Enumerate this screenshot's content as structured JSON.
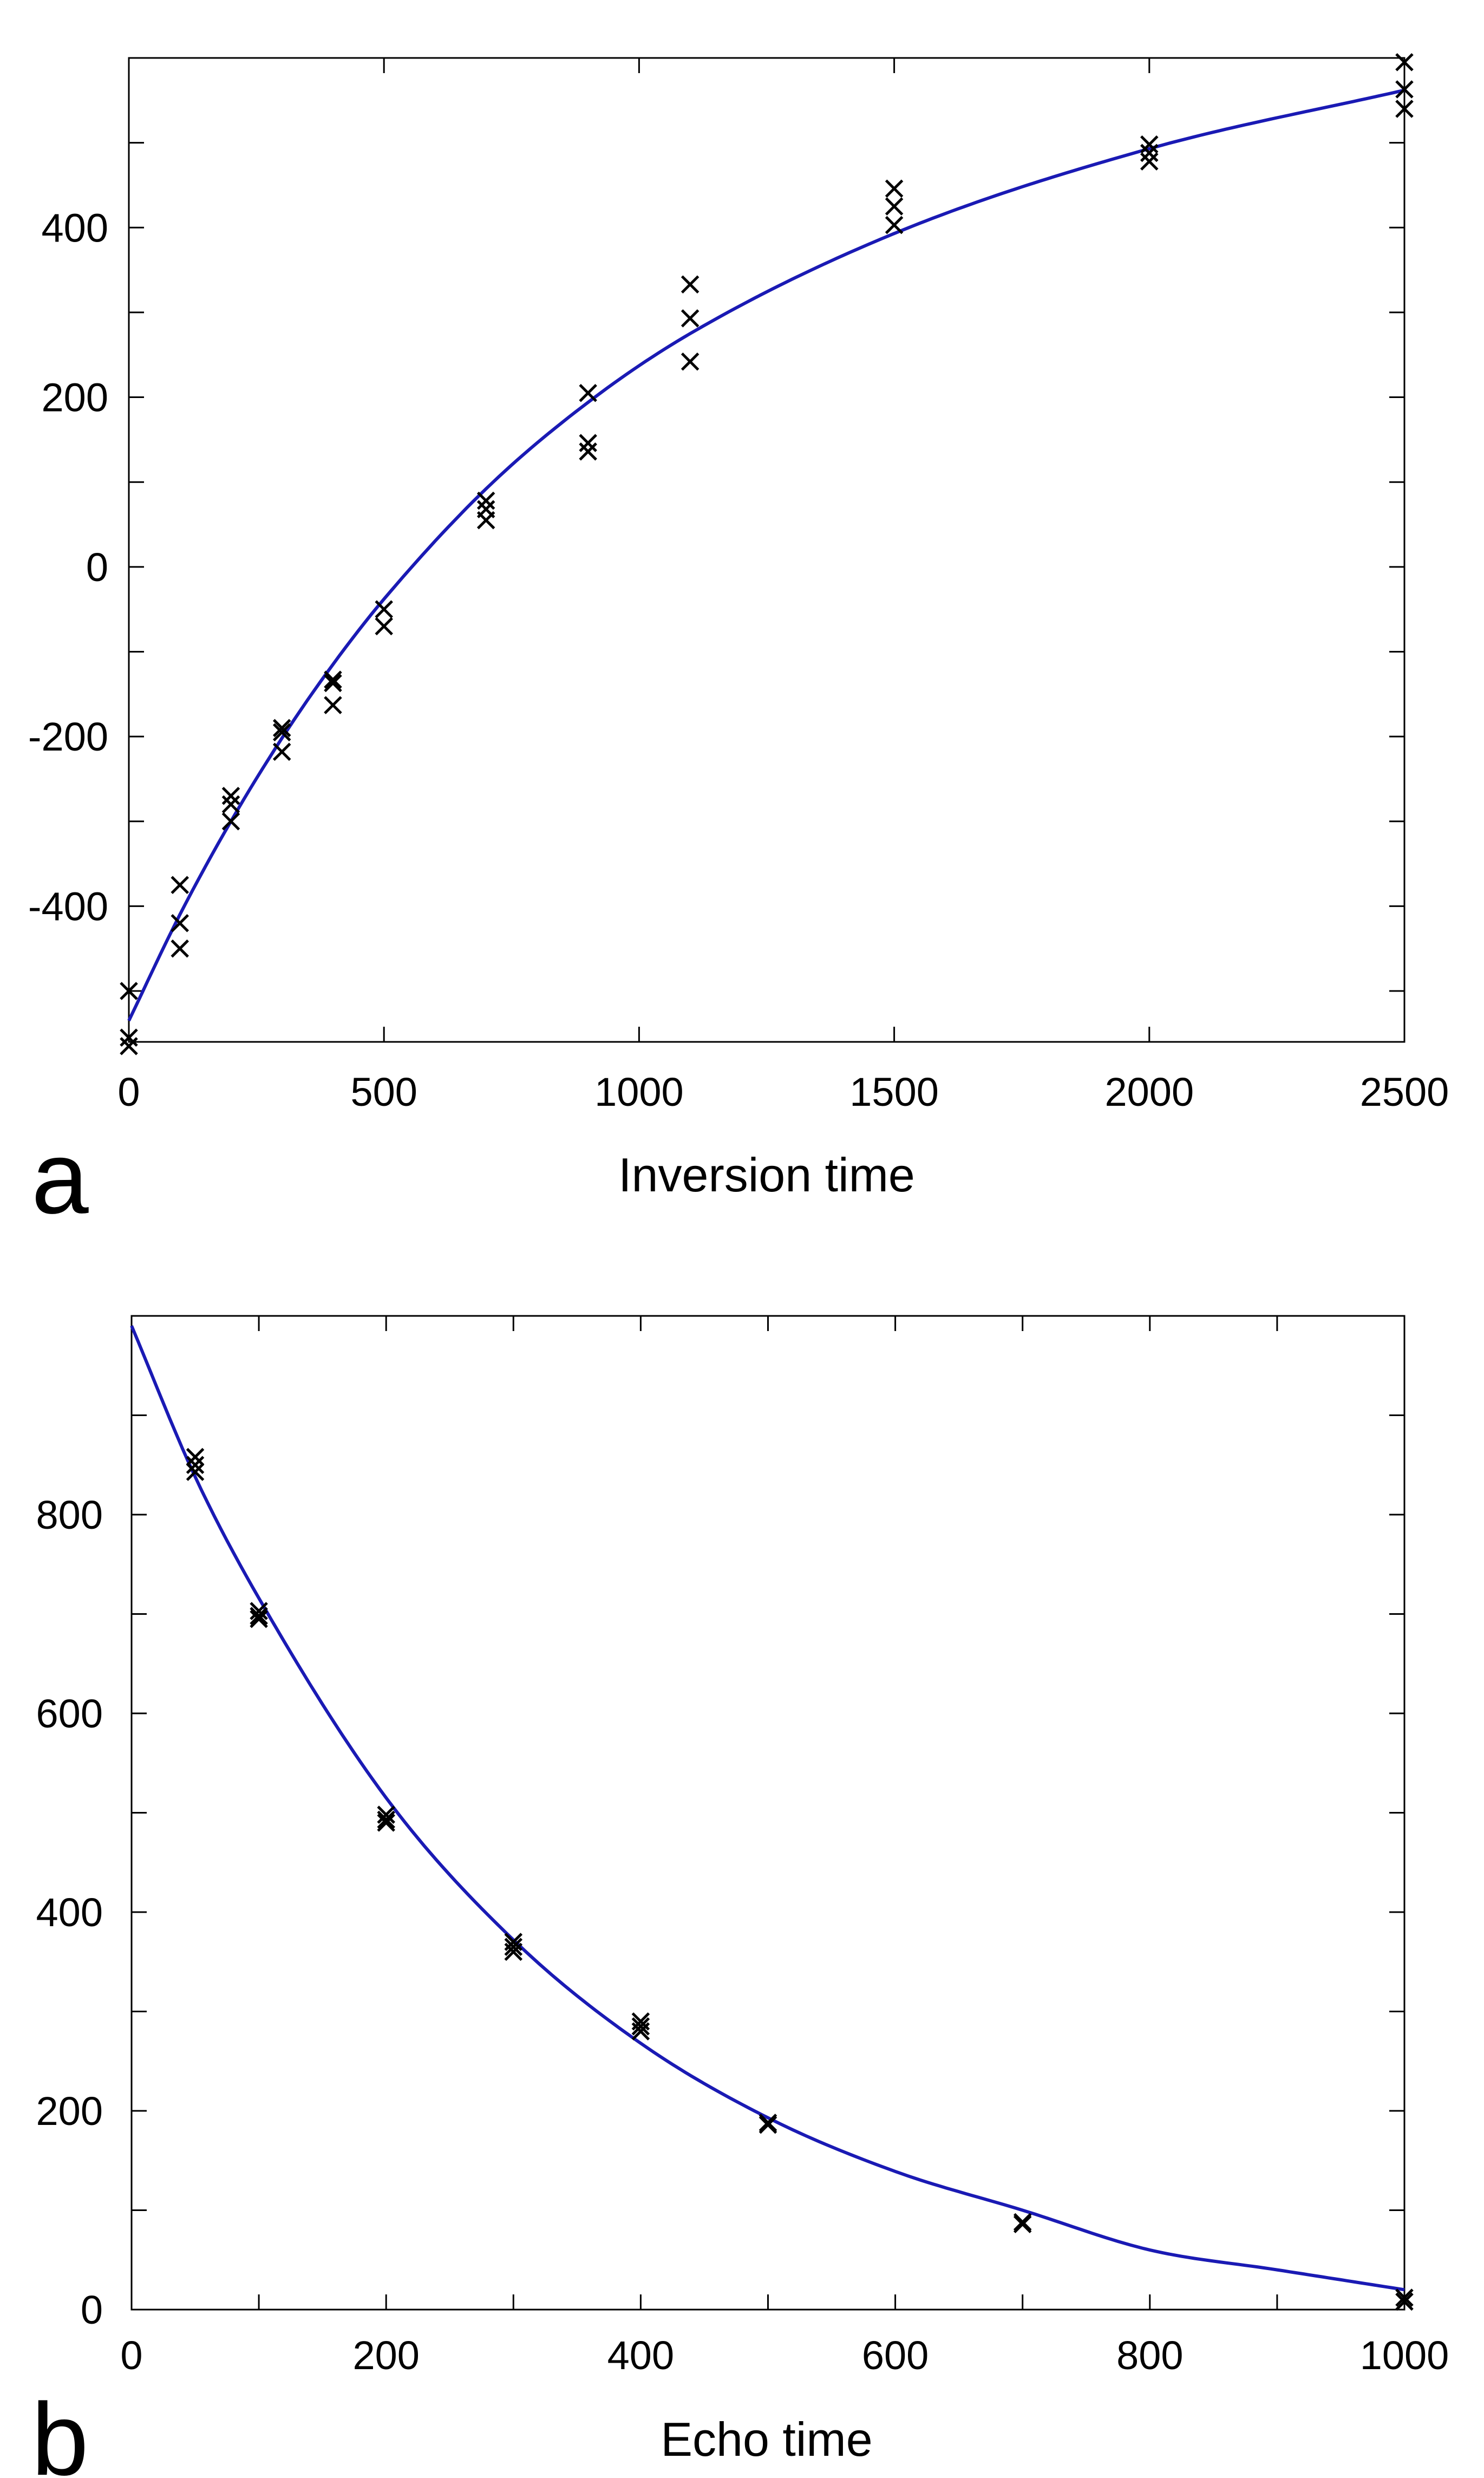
{
  "chart_data": [
    {
      "type": "scatter",
      "panel_label": "a",
      "title": "",
      "xlabel": "Inversion time",
      "ylabel": "",
      "xlim": [
        0,
        2500
      ],
      "ylim": [
        -560,
        600
      ],
      "xticks": [
        0,
        500,
        1000,
        1500,
        2000,
        2500
      ],
      "xtick_labels": [
        "0",
        "500",
        "1000",
        "1500",
        "2000",
        "2500"
      ],
      "yticks": [
        -500,
        -400,
        -300,
        -200,
        -100,
        0,
        100,
        200,
        300,
        400,
        500
      ],
      "ytick_labels": [
        "",
        "-400",
        "",
        "-200",
        "",
        "0",
        "",
        "200",
        "",
        "400",
        ""
      ],
      "grid": false,
      "legend": "none",
      "marker": "x",
      "marker_color": "#000000",
      "fit_color": "#1a1ab4",
      "points": {
        "x": [
          0,
          0,
          0,
          100,
          100,
          100,
          200,
          200,
          200,
          300,
          300,
          300,
          400,
          400,
          400,
          500,
          500,
          700,
          700,
          700,
          900,
          900,
          900,
          1100,
          1100,
          1100,
          1500,
          1500,
          1500,
          2000,
          2000,
          2000,
          2500,
          2500,
          2500
        ],
        "y": [
          -500,
          -555,
          -565,
          -375,
          -420,
          -450,
          -270,
          -280,
          -300,
          -190,
          -195,
          -218,
          -133,
          -137,
          -163,
          -50,
          -70,
          78,
          68,
          55,
          205,
          146,
          136,
          333,
          293,
          242,
          446,
          425,
          403,
          498,
          488,
          478,
          595,
          563,
          540
        ]
      },
      "fit_curve": {
        "name": "",
        "model": "exponential recovery",
        "x": [
          0,
          100,
          200,
          300,
          400,
          500,
          700,
          900,
          1100,
          1500,
          2000,
          2500
        ],
        "y": [
          -535,
          -410,
          -300,
          -202,
          -115,
          -38,
          92,
          194,
          275,
          393,
          493,
          562
        ]
      }
    },
    {
      "type": "scatter",
      "panel_label": "b",
      "title": "",
      "xlabel": "Echo time",
      "ylabel": "",
      "xlim": [
        0,
        1000
      ],
      "ylim": [
        0,
        1000
      ],
      "xticks": [
        0,
        100,
        200,
        300,
        400,
        500,
        600,
        700,
        800,
        900,
        1000
      ],
      "xtick_labels": [
        "0",
        "",
        "200",
        "",
        "400",
        "",
        "600",
        "",
        "800",
        "",
        "1000"
      ],
      "yticks": [
        0,
        100,
        200,
        300,
        400,
        500,
        600,
        700,
        800,
        900
      ],
      "ytick_labels": [
        "0",
        "",
        "200",
        "",
        "400",
        "",
        "600",
        "",
        "800",
        ""
      ],
      "grid": false,
      "legend": "none",
      "marker": "x",
      "marker_color": "#000000",
      "fit_color": "#1a1ab4",
      "points": {
        "x": [
          50,
          50,
          50,
          100,
          100,
          100,
          200,
          200,
          200,
          300,
          300,
          300,
          400,
          400,
          400,
          500,
          500,
          700,
          700,
          1000,
          1000
        ],
        "y": [
          858,
          850,
          843,
          703,
          698,
          695,
          498,
          493,
          490,
          370,
          365,
          360,
          290,
          285,
          280,
          188,
          186,
          88,
          86,
          12,
          8
        ]
      },
      "fit_curve": {
        "name": "",
        "model": "exponential decay",
        "x": [
          0,
          50,
          100,
          200,
          300,
          400,
          500,
          600,
          700,
          800,
          900,
          1000
        ],
        "y": [
          990,
          838,
          716,
          515,
          372,
          268,
          193,
          139,
          100,
          60,
          40,
          20
        ]
      }
    }
  ]
}
